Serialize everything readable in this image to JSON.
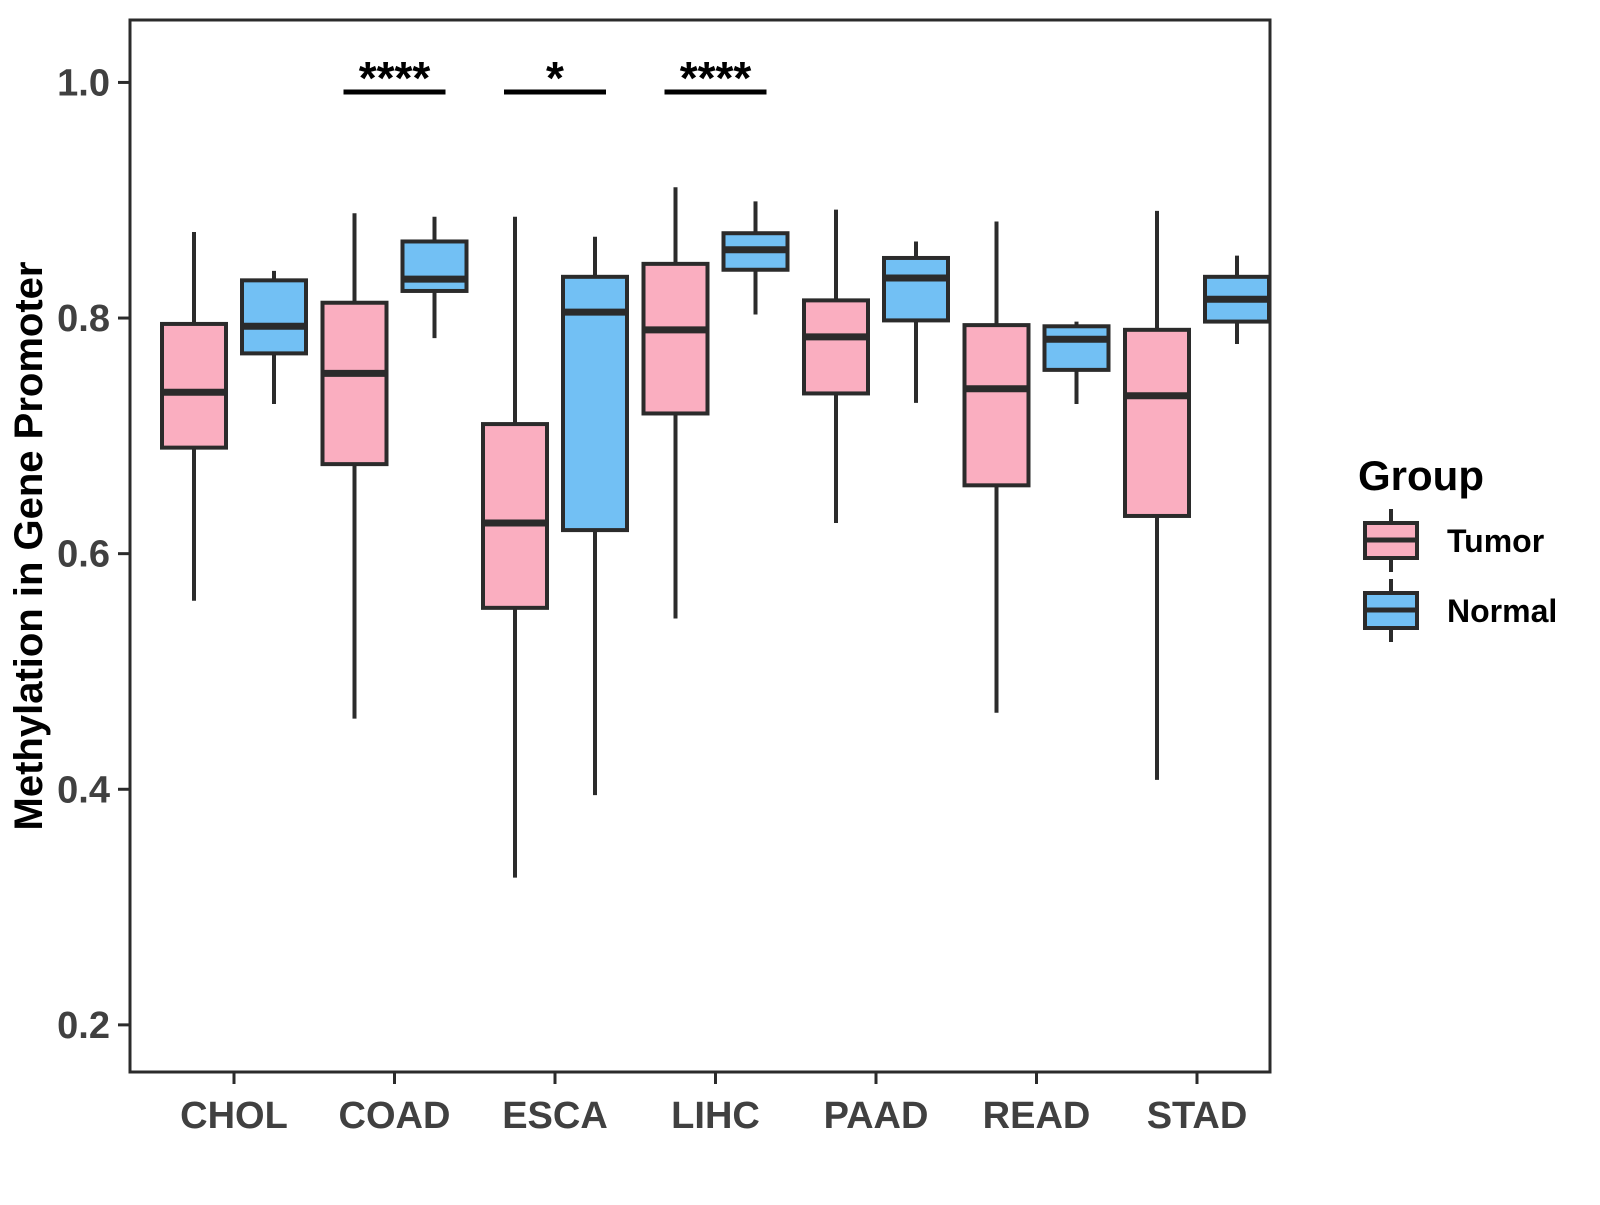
{
  "chart_data": {
    "type": "boxplot",
    "title": "",
    "xlabel": "",
    "ylabel": "Methylation in Gene Promoter",
    "categories": [
      "CHOL",
      "COAD",
      "ESCA",
      "LIHC",
      "PAAD",
      "READ",
      "STAD"
    ],
    "y_ticks": [
      0.2,
      0.4,
      0.6,
      0.8,
      1.0
    ],
    "ylim": [
      0.16,
      1.053
    ],
    "grid": "off",
    "legend": {
      "title": "Group",
      "position": "right"
    },
    "groups": [
      {
        "name": "Tumor",
        "color": "#FAAEC0",
        "boxes": [
          {
            "category": "CHOL",
            "whisker_low": 0.56,
            "q1": 0.69,
            "median": 0.737,
            "q3": 0.795,
            "whisker_high": 0.873
          },
          {
            "category": "COAD",
            "whisker_low": 0.46,
            "q1": 0.676,
            "median": 0.753,
            "q3": 0.813,
            "whisker_high": 0.889
          },
          {
            "category": "ESCA",
            "whisker_low": 0.325,
            "q1": 0.554,
            "median": 0.626,
            "q3": 0.71,
            "whisker_high": 0.886
          },
          {
            "category": "LIHC",
            "whisker_low": 0.545,
            "q1": 0.719,
            "median": 0.79,
            "q3": 0.846,
            "whisker_high": 0.911
          },
          {
            "category": "PAAD",
            "whisker_low": 0.626,
            "q1": 0.736,
            "median": 0.784,
            "q3": 0.815,
            "whisker_high": 0.892
          },
          {
            "category": "READ",
            "whisker_low": 0.465,
            "q1": 0.658,
            "median": 0.74,
            "q3": 0.794,
            "whisker_high": 0.882
          },
          {
            "category": "STAD",
            "whisker_low": 0.408,
            "q1": 0.632,
            "median": 0.734,
            "q3": 0.79,
            "whisker_high": 0.891
          }
        ]
      },
      {
        "name": "Normal",
        "color": "#72C0F4",
        "boxes": [
          {
            "category": "CHOL",
            "whisker_low": 0.727,
            "q1": 0.77,
            "median": 0.793,
            "q3": 0.832,
            "whisker_high": 0.84
          },
          {
            "category": "COAD",
            "whisker_low": 0.783,
            "q1": 0.823,
            "median": 0.833,
            "q3": 0.865,
            "whisker_high": 0.886
          },
          {
            "category": "ESCA",
            "whisker_low": 0.395,
            "q1": 0.62,
            "median": 0.805,
            "q3": 0.835,
            "whisker_high": 0.869
          },
          {
            "category": "LIHC",
            "whisker_low": 0.803,
            "q1": 0.841,
            "median": 0.858,
            "q3": 0.872,
            "whisker_high": 0.899
          },
          {
            "category": "PAAD",
            "whisker_low": 0.728,
            "q1": 0.798,
            "median": 0.834,
            "q3": 0.851,
            "whisker_high": 0.865
          },
          {
            "category": "READ",
            "whisker_low": 0.727,
            "q1": 0.756,
            "median": 0.782,
            "q3": 0.793,
            "whisker_high": 0.797
          },
          {
            "category": "STAD",
            "whisker_low": 0.778,
            "q1": 0.797,
            "median": 0.816,
            "q3": 0.835,
            "whisker_high": 0.853
          }
        ]
      }
    ],
    "significance": [
      {
        "category": "COAD",
        "label": "****"
      },
      {
        "category": "ESCA",
        "label": "*"
      },
      {
        "category": "LIHC",
        "label": "****"
      }
    ]
  }
}
